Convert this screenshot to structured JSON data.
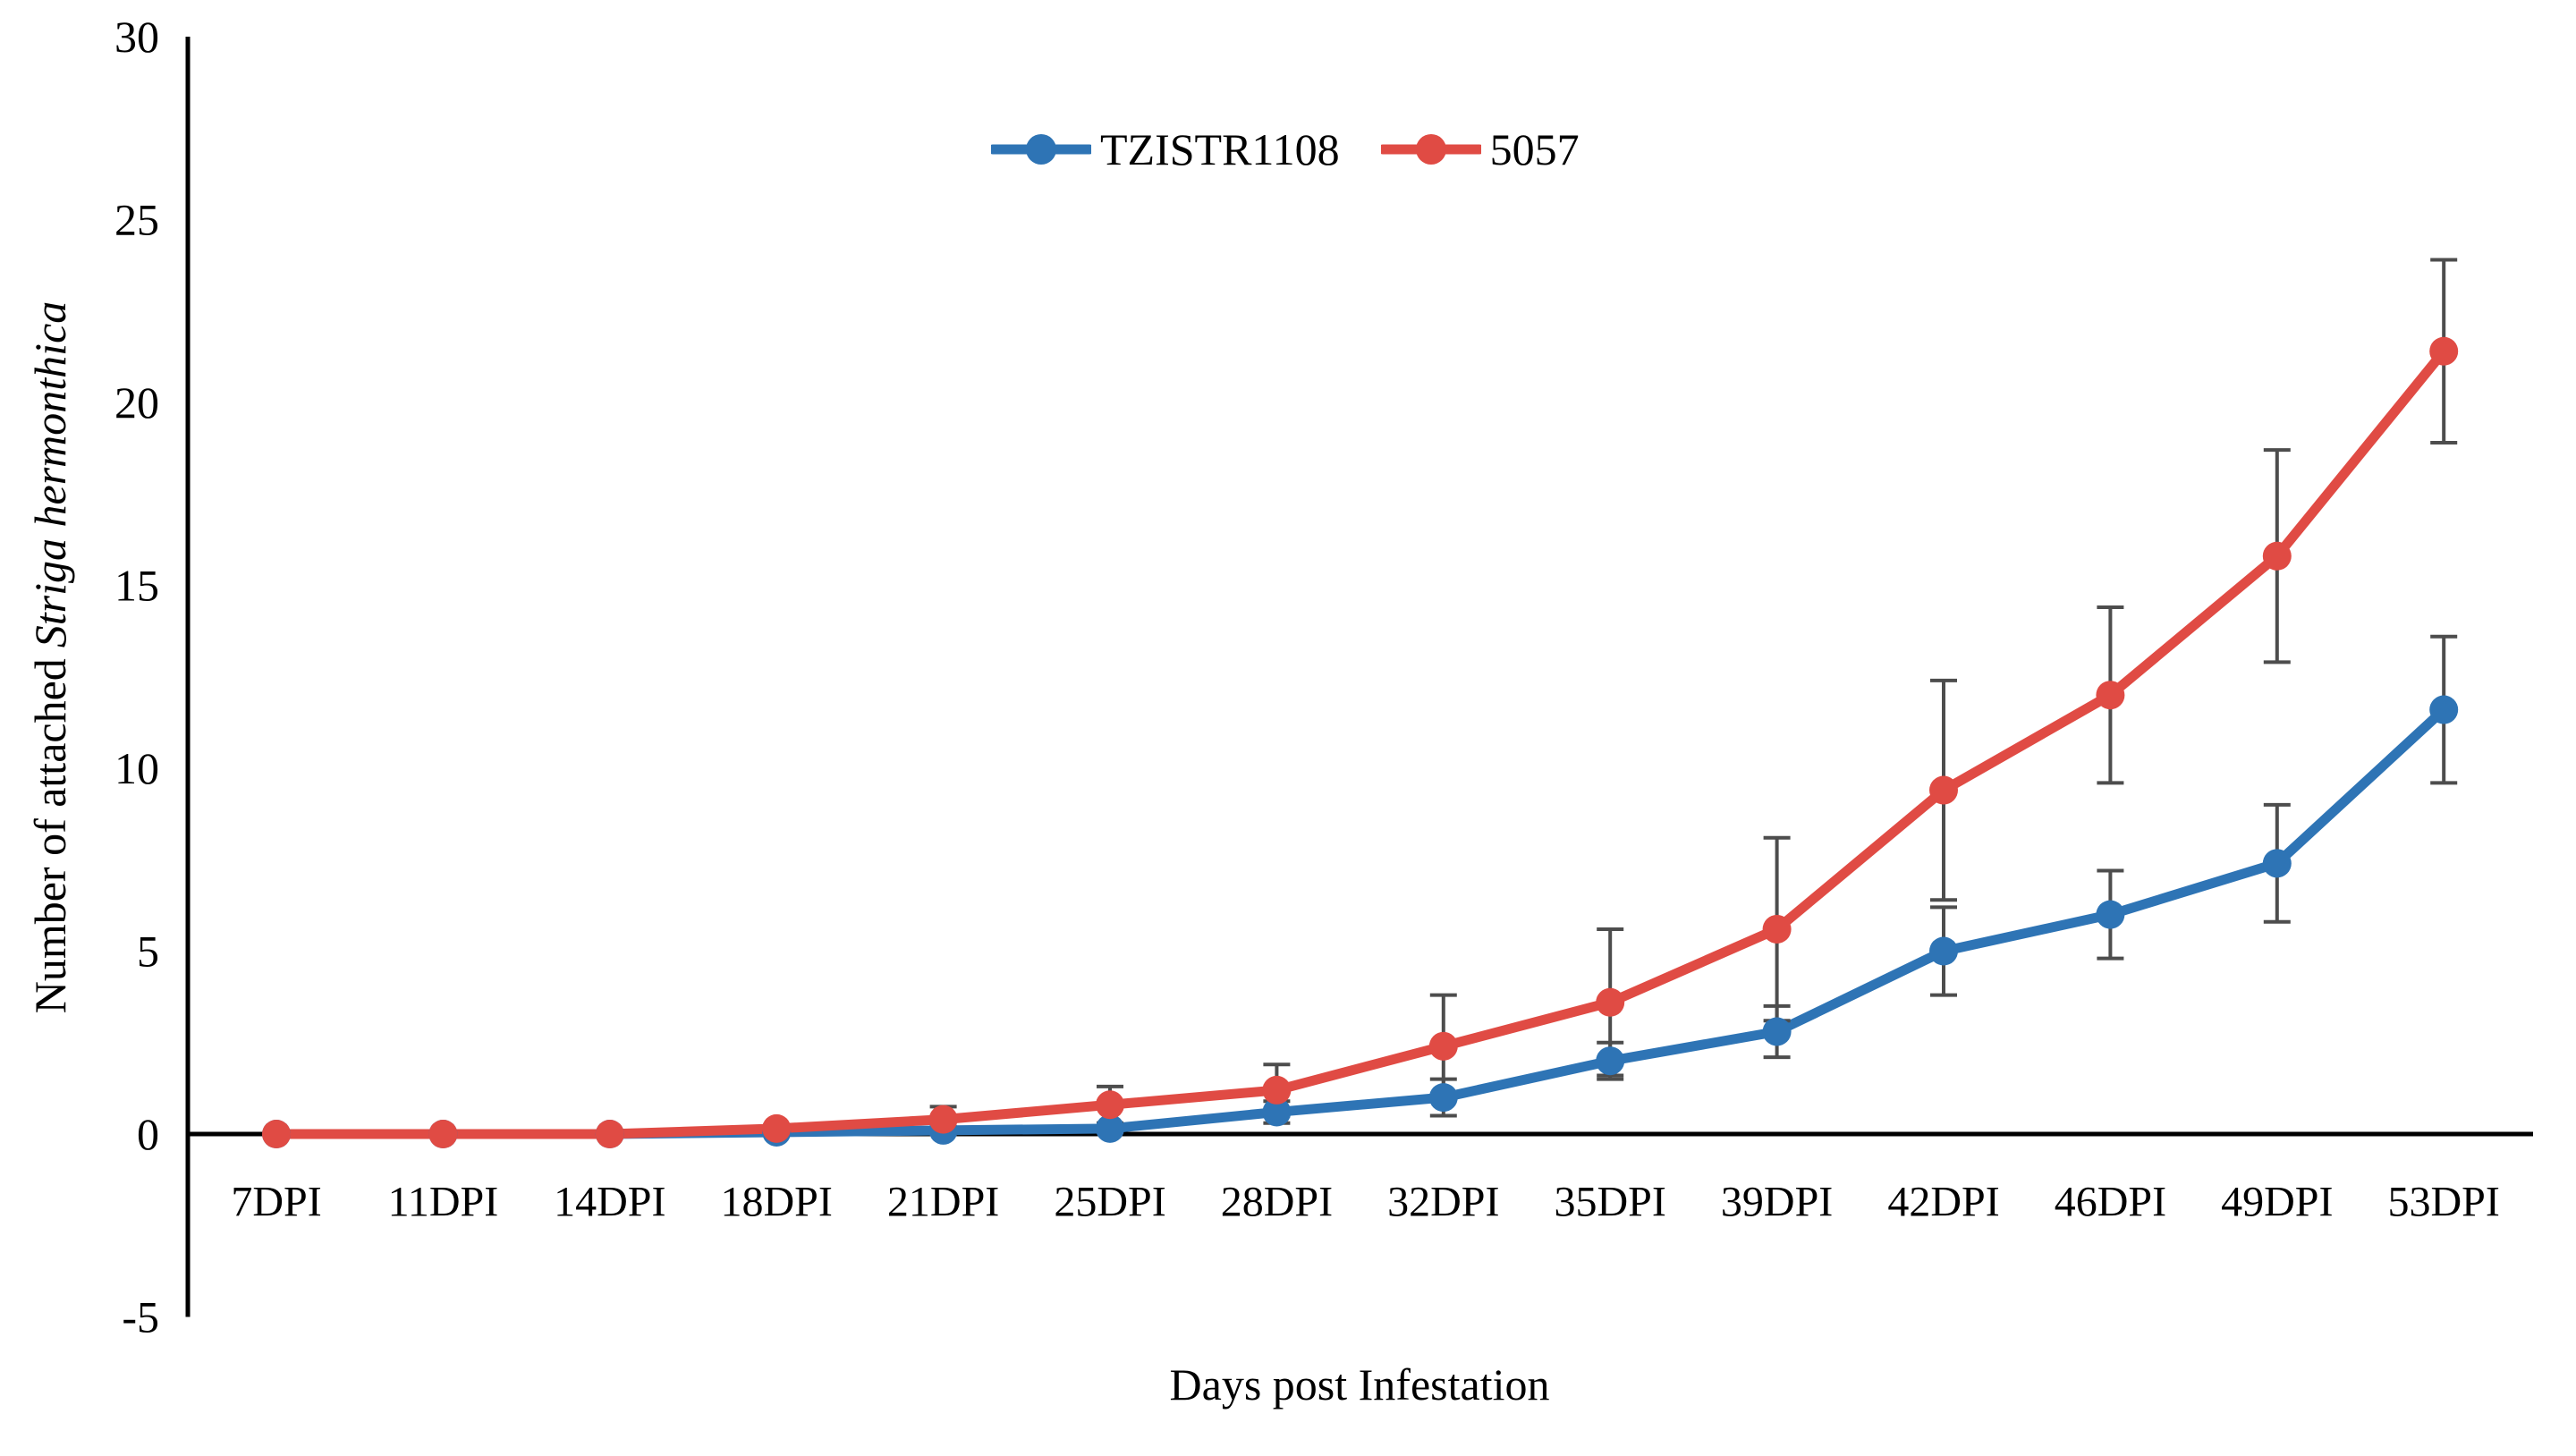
{
  "figure_title": "",
  "chart_data": {
    "type": "line",
    "categories": [
      "7DPI",
      "11DPI",
      "14DPI",
      "18DPI",
      "21DPI",
      "25DPI",
      "28DPI",
      "32DPI",
      "35DPI",
      "39DPI",
      "42DPI",
      "46DPI",
      "49DPI",
      "53DPI"
    ],
    "series": [
      {
        "name": "TZISTR1108",
        "color": "#2e74b5",
        "values": [
          0,
          0,
          0,
          0.05,
          0.1,
          0.15,
          0.6,
          1.0,
          2.0,
          2.8,
          5.0,
          6.0,
          7.4,
          11.6
        ],
        "errors": [
          0,
          0,
          0,
          0,
          0.1,
          0.1,
          0.3,
          0.5,
          0.5,
          0.7,
          1.2,
          1.2,
          1.6,
          2.0
        ]
      },
      {
        "name": "5057",
        "color": "#e04b44",
        "values": [
          0,
          0,
          0,
          0.15,
          0.4,
          0.8,
          1.2,
          2.4,
          3.6,
          5.6,
          9.4,
          12.0,
          15.8,
          21.4
        ],
        "errors": [
          0,
          0,
          0,
          0.1,
          0.35,
          0.5,
          0.7,
          1.4,
          2.0,
          2.5,
          3.0,
          2.4,
          2.9,
          2.5
        ]
      }
    ],
    "xlabel": "Days post Infestation",
    "ylabel": "Number of attached Striga hermonthica",
    "ylabel_regular": "Number of attached",
    "ylabel_italic": "Striga hermonthica",
    "ylim": [
      -5,
      30
    ],
    "yticks": [
      30,
      25,
      20,
      15,
      10,
      5,
      0,
      -5
    ],
    "grid": false,
    "legend_position": "top-center",
    "axis_color": "#000000",
    "error_bar_color": "#4d4d4d",
    "tick_label_color": "#000000"
  }
}
